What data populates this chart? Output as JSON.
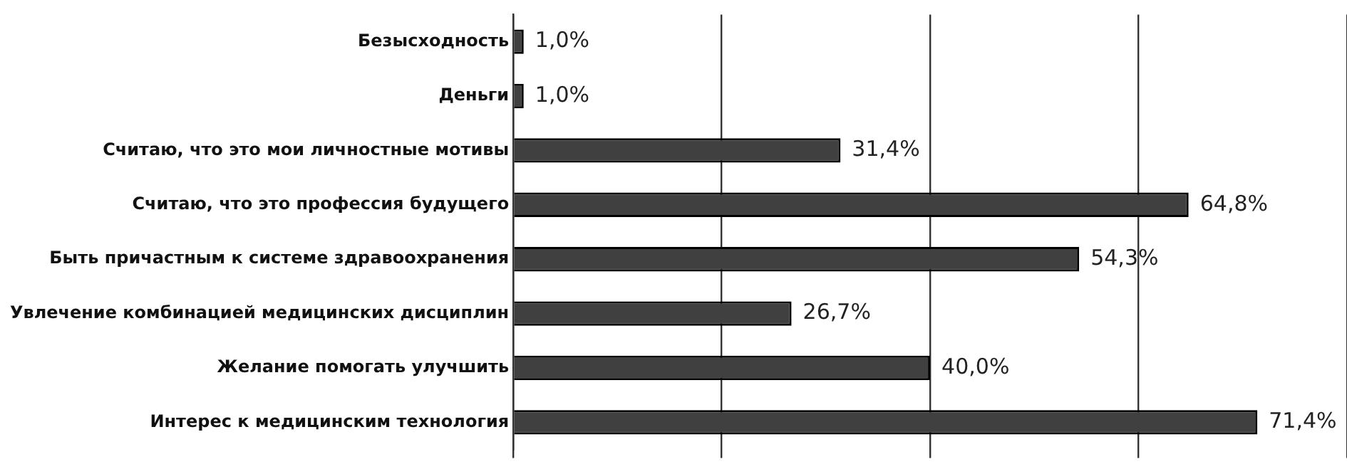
{
  "chart_data": {
    "type": "bar",
    "orientation": "horizontal",
    "categories": [
      "Безысходность",
      "Деньги",
      "Считаю, что это мои личностные мотивы",
      "Считаю, что это профессия будущего",
      "Быть причастным к системе здравоохранения",
      "Увлечение комбинацией медицинских дисциплин",
      "Желание помогать улучшить",
      "Интерес к медицинским технология"
    ],
    "values": [
      1.0,
      1.0,
      31.4,
      64.8,
      54.3,
      26.7,
      40.0,
      71.4
    ],
    "value_labels": [
      "1,0%",
      "1,0%",
      "31,4%",
      "64,8%",
      "54,3%",
      "26,7%",
      "40,0%",
      "71,4%"
    ],
    "color": "#404040",
    "xlim": [
      0,
      80
    ],
    "xticks": [
      {
        "value": 0,
        "label": null
      },
      {
        "value": 20,
        "label": null
      },
      {
        "value": 40,
        "label": null
      },
      {
        "value": 60,
        "label": null
      },
      {
        "value": 80,
        "label": null
      }
    ],
    "grid": "x",
    "tick_labels": "y",
    "legend": false
  }
}
